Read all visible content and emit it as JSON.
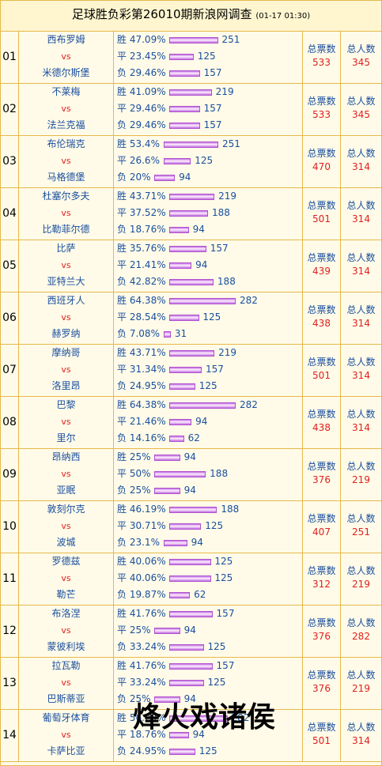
{
  "header": {
    "title": "足球胜负彩第26010期新浪网调查",
    "date": "(01-17 01:30)"
  },
  "labels": {
    "vs": "vs",
    "total_votes": "总票数",
    "total_people": "总人数",
    "win": "胜",
    "draw": "平",
    "lose": "负"
  },
  "matches": [
    {
      "no": "01",
      "home": "西布罗姆",
      "away": "米德尔斯堡",
      "win": {
        "pct": "47.09%",
        "count": "251"
      },
      "draw": {
        "pct": "23.45%",
        "count": "125"
      },
      "lose": {
        "pct": "29.46%",
        "count": "157"
      },
      "votes": "533",
      "people": "345"
    },
    {
      "no": "02",
      "home": "不莱梅",
      "away": "法兰克福",
      "win": {
        "pct": "41.09%",
        "count": "219"
      },
      "draw": {
        "pct": "29.46%",
        "count": "157"
      },
      "lose": {
        "pct": "29.46%",
        "count": "157"
      },
      "votes": "533",
      "people": "345"
    },
    {
      "no": "03",
      "home": "布伦瑞克",
      "away": "马格德堡",
      "win": {
        "pct": "53.4%",
        "count": "251"
      },
      "draw": {
        "pct": "26.6%",
        "count": "125"
      },
      "lose": {
        "pct": "20%",
        "count": "94"
      },
      "votes": "470",
      "people": "314"
    },
    {
      "no": "04",
      "home": "杜塞尔多夫",
      "away": "比勒菲尔德",
      "win": {
        "pct": "43.71%",
        "count": "219"
      },
      "draw": {
        "pct": "37.52%",
        "count": "188"
      },
      "lose": {
        "pct": "18.76%",
        "count": "94"
      },
      "votes": "501",
      "people": "314"
    },
    {
      "no": "05",
      "home": "比萨",
      "away": "亚特兰大",
      "win": {
        "pct": "35.76%",
        "count": "157"
      },
      "draw": {
        "pct": "21.41%",
        "count": "94"
      },
      "lose": {
        "pct": "42.82%",
        "count": "188"
      },
      "votes": "439",
      "people": "314"
    },
    {
      "no": "06",
      "home": "西班牙人",
      "away": "赫罗纳",
      "win": {
        "pct": "64.38%",
        "count": "282"
      },
      "draw": {
        "pct": "28.54%",
        "count": "125"
      },
      "lose": {
        "pct": "7.08%",
        "count": "31"
      },
      "votes": "438",
      "people": "314"
    },
    {
      "no": "07",
      "home": "摩纳哥",
      "away": "洛里昂",
      "win": {
        "pct": "43.71%",
        "count": "219"
      },
      "draw": {
        "pct": "31.34%",
        "count": "157"
      },
      "lose": {
        "pct": "24.95%",
        "count": "125"
      },
      "votes": "501",
      "people": "314"
    },
    {
      "no": "08",
      "home": "巴黎",
      "away": "里尔",
      "win": {
        "pct": "64.38%",
        "count": "282"
      },
      "draw": {
        "pct": "21.46%",
        "count": "94"
      },
      "lose": {
        "pct": "14.16%",
        "count": "62"
      },
      "votes": "438",
      "people": "314"
    },
    {
      "no": "09",
      "home": "昂纳西",
      "away": "亚眠",
      "win": {
        "pct": "25%",
        "count": "94"
      },
      "draw": {
        "pct": "50%",
        "count": "188"
      },
      "lose": {
        "pct": "25%",
        "count": "94"
      },
      "votes": "376",
      "people": "219"
    },
    {
      "no": "10",
      "home": "敦刻尔克",
      "away": "波城",
      "win": {
        "pct": "46.19%",
        "count": "188"
      },
      "draw": {
        "pct": "30.71%",
        "count": "125"
      },
      "lose": {
        "pct": "23.1%",
        "count": "94"
      },
      "votes": "407",
      "people": "251"
    },
    {
      "no": "11",
      "home": "罗德兹",
      "away": "勒芒",
      "win": {
        "pct": "40.06%",
        "count": "125"
      },
      "draw": {
        "pct": "40.06%",
        "count": "125"
      },
      "lose": {
        "pct": "19.87%",
        "count": "62"
      },
      "votes": "312",
      "people": "219"
    },
    {
      "no": "12",
      "home": "布洛涅",
      "away": "蒙彼利埃",
      "win": {
        "pct": "41.76%",
        "count": "157"
      },
      "draw": {
        "pct": "25%",
        "count": "94"
      },
      "lose": {
        "pct": "33.24%",
        "count": "125"
      },
      "votes": "376",
      "people": "282"
    },
    {
      "no": "13",
      "home": "拉瓦勒",
      "away": "巴斯蒂亚",
      "win": {
        "pct": "41.76%",
        "count": "157"
      },
      "draw": {
        "pct": "33.24%",
        "count": "125"
      },
      "lose": {
        "pct": "25%",
        "count": "94"
      },
      "votes": "376",
      "people": "219"
    },
    {
      "no": "14",
      "home": "葡萄牙体育",
      "away": "卡萨比亚",
      "win": {
        "pct": "56.29%",
        "count": "282"
      },
      "draw": {
        "pct": "18.76%",
        "count": "94"
      },
      "lose": {
        "pct": "24.95%",
        "count": "125"
      },
      "votes": "501",
      "people": "314"
    }
  ],
  "watermark": "烽火戏诸侯"
}
